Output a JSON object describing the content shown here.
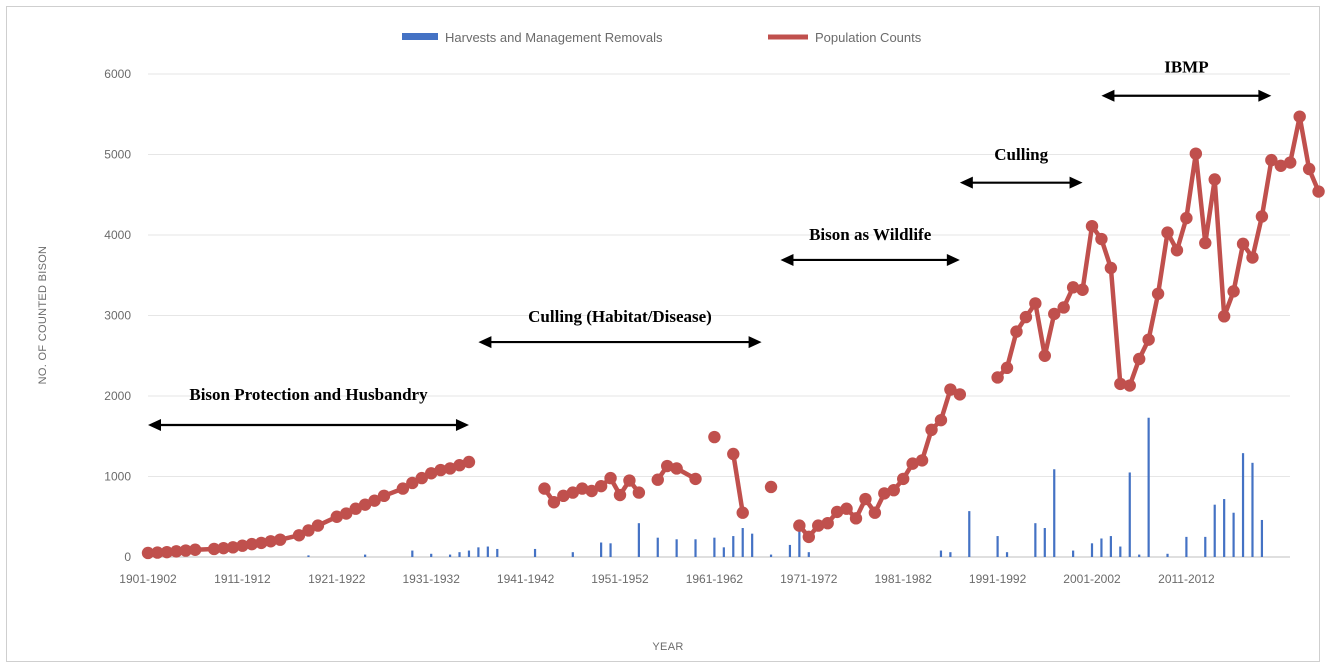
{
  "chart_data": {
    "type": "bar",
    "xlabel": "YEAR",
    "ylabel": "NO. OF COUNTED BISON",
    "ylim": [
      0,
      6000
    ],
    "y_ticks": [
      "0",
      "1000",
      "2000",
      "3000",
      "4000",
      "5000",
      "6000"
    ],
    "x_tick_labels": [
      "1901-1902",
      "1911-1912",
      "1921-1922",
      "1931-1932",
      "1941-1942",
      "1951-1952",
      "1961-1962",
      "1971-1972",
      "1981-1982",
      "1991-1992",
      "2001-2002",
      "2011-2012"
    ],
    "years": [
      1901,
      1911,
      1921,
      1931,
      1941,
      1951,
      1961,
      1971,
      1981,
      1991,
      2001,
      2011
    ],
    "gridlines": true,
    "legend_position": "top-center",
    "series": [
      {
        "name": "Harvests and Management Removals",
        "type": "bar",
        "color": "#4472c4",
        "points": [
          [
            1918,
            20
          ],
          [
            1924,
            30
          ],
          [
            1929,
            80
          ],
          [
            1931,
            40
          ],
          [
            1933,
            30
          ],
          [
            1934,
            60
          ],
          [
            1935,
            80
          ],
          [
            1936,
            120
          ],
          [
            1937,
            130
          ],
          [
            1938,
            100
          ],
          [
            1942,
            100
          ],
          [
            1946,
            60
          ],
          [
            1949,
            180
          ],
          [
            1950,
            170
          ],
          [
            1953,
            420
          ],
          [
            1955,
            240
          ],
          [
            1957,
            220
          ],
          [
            1959,
            220
          ],
          [
            1961,
            240
          ],
          [
            1962,
            120
          ],
          [
            1963,
            260
          ],
          [
            1964,
            360
          ],
          [
            1965,
            290
          ],
          [
            1967,
            30
          ],
          [
            1969,
            150
          ],
          [
            1970,
            360
          ],
          [
            1971,
            60
          ],
          [
            1985,
            80
          ],
          [
            1986,
            60
          ],
          [
            1988,
            570
          ],
          [
            1991,
            260
          ],
          [
            1992,
            60
          ],
          [
            1995,
            420
          ],
          [
            1996,
            360
          ],
          [
            1997,
            1090
          ],
          [
            1999,
            80
          ],
          [
            2001,
            170
          ],
          [
            2002,
            230
          ],
          [
            2003,
            260
          ],
          [
            2004,
            130
          ],
          [
            2005,
            1050
          ],
          [
            2006,
            30
          ],
          [
            2007,
            1730
          ],
          [
            2009,
            40
          ],
          [
            2011,
            250
          ],
          [
            2013,
            250
          ],
          [
            2014,
            650
          ],
          [
            2015,
            720
          ],
          [
            2016,
            550
          ],
          [
            2017,
            1290
          ],
          [
            2018,
            1170
          ],
          [
            2019,
            460
          ]
        ]
      },
      {
        "name": "Population Counts",
        "type": "line",
        "color": "#c0504d",
        "segments": [
          [
            [
              1901,
              50
            ],
            [
              1902,
              55
            ],
            [
              1903,
              60
            ],
            [
              1904,
              70
            ],
            [
              1905,
              80
            ],
            [
              1906,
              90
            ],
            [
              1908,
              100
            ],
            [
              1909,
              110
            ],
            [
              1910,
              120
            ],
            [
              1911,
              140
            ],
            [
              1912,
              160
            ],
            [
              1913,
              175
            ],
            [
              1914,
              195
            ],
            [
              1915,
              215
            ],
            [
              1917,
              270
            ],
            [
              1918,
              330
            ],
            [
              1919,
              390
            ],
            [
              1921,
              500
            ],
            [
              1922,
              540
            ],
            [
              1923,
              600
            ],
            [
              1924,
              650
            ],
            [
              1925,
              700
            ],
            [
              1926,
              760
            ],
            [
              1928,
              850
            ],
            [
              1929,
              920
            ],
            [
              1930,
              980
            ],
            [
              1931,
              1040
            ],
            [
              1932,
              1080
            ],
            [
              1933,
              1100
            ],
            [
              1934,
              1140
            ],
            [
              1935,
              1180
            ]
          ],
          [
            [
              1943,
              850
            ],
            [
              1944,
              680
            ],
            [
              1945,
              760
            ],
            [
              1946,
              800
            ],
            [
              1947,
              850
            ],
            [
              1948,
              820
            ],
            [
              1949,
              880
            ],
            [
              1950,
              980
            ],
            [
              1951,
              770
            ],
            [
              1952,
              950
            ],
            [
              1953,
              800
            ]
          ],
          [
            [
              1955,
              960
            ],
            [
              1956,
              1130
            ],
            [
              1957,
              1100
            ],
            [
              1959,
              970
            ]
          ],
          [
            [
              1961,
              1490
            ]
          ],
          [
            [
              1963,
              1280
            ],
            [
              1964,
              550
            ]
          ],
          [
            [
              1967,
              870
            ]
          ],
          [
            [
              1970,
              390
            ],
            [
              1971,
              250
            ],
            [
              1972,
              390
            ],
            [
              1973,
              420
            ],
            [
              1974,
              560
            ],
            [
              1975,
              600
            ],
            [
              1976,
              480
            ],
            [
              1977,
              720
            ],
            [
              1978,
              550
            ],
            [
              1979,
              790
            ],
            [
              1980,
              830
            ],
            [
              1981,
              970
            ],
            [
              1982,
              1160
            ],
            [
              1983,
              1200
            ],
            [
              1984,
              1580
            ],
            [
              1985,
              1700
            ],
            [
              1986,
              2080
            ],
            [
              1987,
              2020
            ]
          ],
          [
            [
              1991,
              2230
            ],
            [
              1992,
              2350
            ],
            [
              1993,
              2800
            ],
            [
              1994,
              2980
            ],
            [
              1995,
              3150
            ],
            [
              1996,
              2500
            ],
            [
              1997,
              3020
            ],
            [
              1998,
              3100
            ],
            [
              1999,
              3350
            ],
            [
              2000,
              3320
            ],
            [
              2001,
              4110
            ],
            [
              2002,
              3950
            ],
            [
              2003,
              3590
            ],
            [
              2004,
              2150
            ],
            [
              2005,
              2130
            ],
            [
              2006,
              2460
            ],
            [
              2007,
              2700
            ],
            [
              2008,
              3270
            ],
            [
              2009,
              4030
            ],
            [
              2010,
              3810
            ],
            [
              2011,
              4210
            ],
            [
              2012,
              5010
            ],
            [
              2013,
              3900
            ],
            [
              2014,
              4690
            ],
            [
              2015,
              2990
            ],
            [
              2016,
              3300
            ],
            [
              2017,
              3890
            ],
            [
              2018,
              3720
            ],
            [
              2019,
              4230
            ],
            [
              2020,
              4930
            ],
            [
              2021,
              4860
            ],
            [
              2022,
              4900
            ],
            [
              2023,
              5470
            ],
            [
              2024,
              4820
            ],
            [
              2025,
              4540
            ]
          ]
        ]
      }
    ],
    "annotations": [
      {
        "text": "Bison Protection and Husbandry",
        "x_range": [
          1901,
          1935
        ],
        "arrow_y": 1640,
        "text_y": 1950
      },
      {
        "text": "Culling (Habitat/Disease)",
        "x_range": [
          1936,
          1966
        ],
        "arrow_y": 2670,
        "text_y": 2920
      },
      {
        "text": "Bison as Wildlife",
        "x_range": [
          1968,
          1987
        ],
        "arrow_y": 3690,
        "text_y": 3940
      },
      {
        "text": "Culling",
        "x_range": [
          1987,
          2000
        ],
        "arrow_y": 4650,
        "text_y": 4930
      },
      {
        "text": "IBMP",
        "x_range": [
          2002,
          2020
        ],
        "arrow_y": 5730,
        "text_y": 6020
      }
    ]
  }
}
